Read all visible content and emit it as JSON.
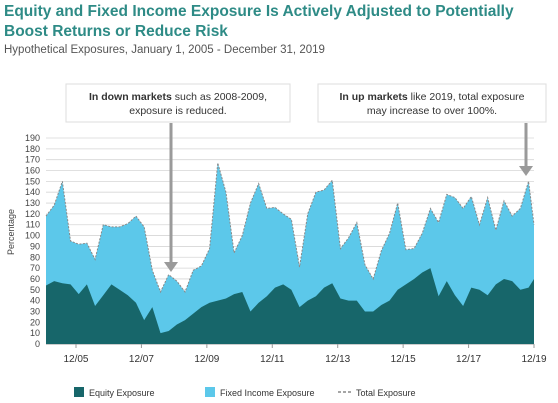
{
  "title": "Equity and Fixed Income Exposure Is Actively Adjusted to Potentially Boost Returns or Reduce Risk",
  "subtitle": "Hypothetical Exposures, January 1, 2005 - December 31, 2019",
  "colors": {
    "equity": "#17666a",
    "fixed_income": "#5cc8ea",
    "total": "#888888",
    "title": "#2e8b86"
  },
  "annotations": [
    {
      "bold": "In down markets",
      "rest": " such as 2008-2009,",
      "line2": "exposure is reduced."
    },
    {
      "bold": "In up markets",
      "rest": " like 2019, total exposure",
      "line2": "may increase to over 100%."
    }
  ],
  "chart_data": {
    "type": "area",
    "ylabel": "Percentage",
    "xlabel": "",
    "ylim": [
      0,
      190
    ],
    "yticks": [
      "0",
      "10",
      "20",
      "30",
      "40",
      "50",
      "60",
      "70",
      "80",
      "90",
      "100",
      "110",
      "120",
      "130",
      "140",
      "150",
      "160",
      "170",
      "180",
      "190"
    ],
    "xtick_labels": [
      "12/05",
      "12/07",
      "12/09",
      "12/11",
      "12/13",
      "12/15",
      "12/17",
      "12/19"
    ],
    "x_range": [
      "2005-01",
      "2019-12"
    ],
    "x": [
      "2005-01",
      "2005-04",
      "2005-07",
      "2005-10",
      "2006-01",
      "2006-04",
      "2006-07",
      "2006-10",
      "2007-01",
      "2007-04",
      "2007-07",
      "2007-10",
      "2008-01",
      "2008-04",
      "2008-07",
      "2008-10",
      "2009-01",
      "2009-04",
      "2009-07",
      "2009-10",
      "2010-01",
      "2010-04",
      "2010-07",
      "2010-10",
      "2011-01",
      "2011-04",
      "2011-07",
      "2011-10",
      "2012-01",
      "2012-04",
      "2012-07",
      "2012-10",
      "2013-01",
      "2013-04",
      "2013-07",
      "2013-10",
      "2014-01",
      "2014-04",
      "2014-07",
      "2014-10",
      "2015-01",
      "2015-04",
      "2015-07",
      "2015-10",
      "2016-01",
      "2016-04",
      "2016-07",
      "2016-10",
      "2017-01",
      "2017-04",
      "2017-07",
      "2017-10",
      "2018-01",
      "2018-04",
      "2018-07",
      "2018-10",
      "2019-01",
      "2019-04",
      "2019-07",
      "2019-10",
      "2019-12"
    ],
    "series": [
      {
        "name": "Equity Exposure",
        "values": [
          54,
          58,
          56,
          55,
          46,
          55,
          35,
          45,
          55,
          50,
          45,
          38,
          22,
          34,
          10,
          12,
          18,
          22,
          28,
          34,
          38,
          40,
          42,
          46,
          48,
          30,
          38,
          44,
          52,
          55,
          50,
          34,
          40,
          44,
          52,
          56,
          42,
          40,
          40,
          30,
          30,
          36,
          40,
          50,
          55,
          60,
          66,
          70,
          44,
          58,
          45,
          35,
          52,
          50,
          45,
          55,
          60,
          58,
          50,
          52,
          60
        ]
      },
      {
        "name": "Fixed Income Exposure",
        "values": [
          64,
          70,
          94,
          40,
          46,
          38,
          43,
          65,
          53,
          58,
          66,
          80,
          86,
          34,
          38,
          52,
          40,
          26,
          40,
          38,
          50,
          127,
          98,
          38,
          52,
          100,
          110,
          81,
          74,
          65,
          65,
          37,
          80,
          96,
          90,
          95,
          46,
          58,
          72,
          43,
          30,
          50,
          62,
          80,
          32,
          28,
          36,
          55,
          68,
          80,
          90,
          90,
          84,
          60,
          90,
          50,
          72,
          60,
          75,
          98,
          50
        ]
      },
      {
        "name": "Total Exposure"
      }
    ]
  },
  "legend": [
    {
      "label": "Equity Exposure"
    },
    {
      "label": "Fixed Income Exposure"
    },
    {
      "label": "Total Exposure"
    }
  ]
}
